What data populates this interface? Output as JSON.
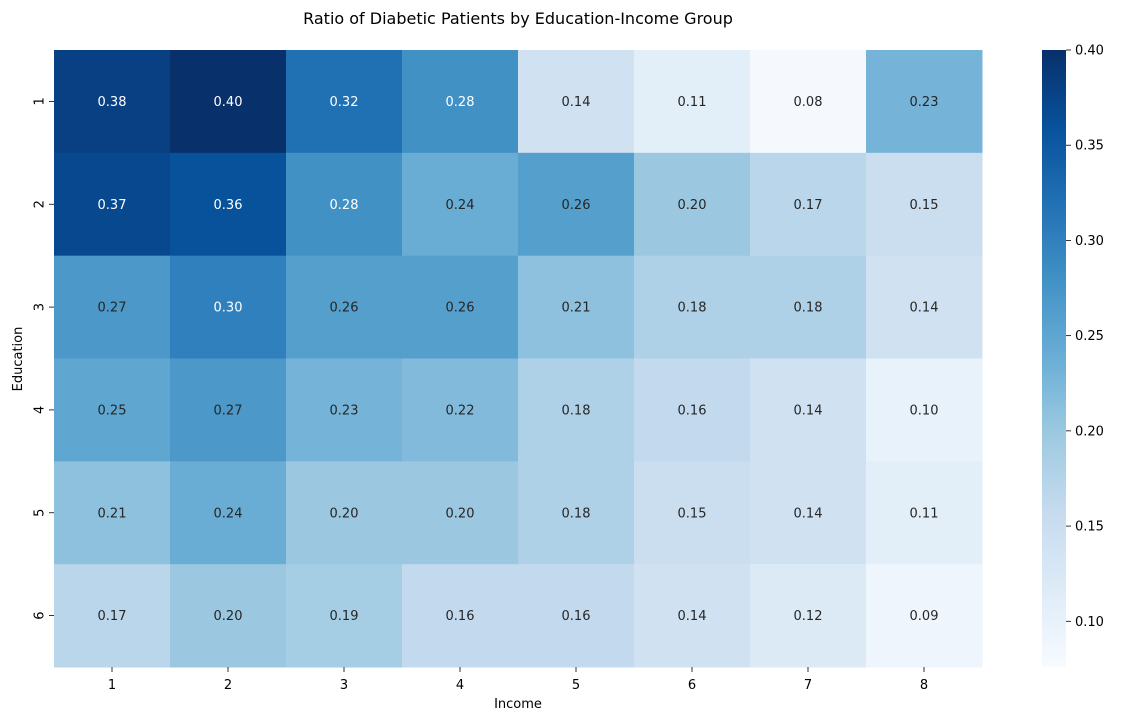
{
  "chart_data": {
    "type": "heatmap",
    "title": "Ratio of Diabetic Patients by Education-Income Group",
    "xlabel": "Income",
    "ylabel": "Education",
    "x_categories": [
      "1",
      "2",
      "3",
      "4",
      "5",
      "6",
      "7",
      "8"
    ],
    "y_categories": [
      "1",
      "2",
      "3",
      "4",
      "5",
      "6"
    ],
    "values": [
      [
        0.38,
        0.4,
        0.32,
        0.28,
        0.14,
        0.11,
        0.08,
        0.23
      ],
      [
        0.37,
        0.36,
        0.28,
        0.24,
        0.26,
        0.2,
        0.17,
        0.15
      ],
      [
        0.27,
        0.3,
        0.26,
        0.26,
        0.21,
        0.18,
        0.18,
        0.14
      ],
      [
        0.25,
        0.27,
        0.23,
        0.22,
        0.18,
        0.16,
        0.14,
        0.1
      ],
      [
        0.21,
        0.24,
        0.2,
        0.2,
        0.18,
        0.15,
        0.14,
        0.11
      ],
      [
        0.17,
        0.2,
        0.19,
        0.16,
        0.16,
        0.14,
        0.12,
        0.09
      ]
    ],
    "cell_labels": [
      [
        "0.38",
        "0.40",
        "0.32",
        "0.28",
        "0.14",
        "0.11",
        "0.08",
        "0.23"
      ],
      [
        "0.37",
        "0.36",
        "0.28",
        "0.24",
        "0.26",
        "0.20",
        "0.17",
        "0.15"
      ],
      [
        "0.27",
        "0.30",
        "0.26",
        "0.26",
        "0.21",
        "0.18",
        "0.18",
        "0.14"
      ],
      [
        "0.25",
        "0.27",
        "0.23",
        "0.22",
        "0.18",
        "0.16",
        "0.14",
        "0.10"
      ],
      [
        "0.21",
        "0.24",
        "0.20",
        "0.20",
        "0.18",
        "0.15",
        "0.14",
        "0.11"
      ],
      [
        "0.17",
        "0.20",
        "0.19",
        "0.16",
        "0.16",
        "0.14",
        "0.12",
        "0.09"
      ]
    ],
    "colorbar": {
      "min": 0.076,
      "max": 0.4,
      "ticks": [
        0.1,
        0.15,
        0.2,
        0.25,
        0.3,
        0.35,
        0.4
      ],
      "tick_labels": [
        "0.10",
        "0.15",
        "0.20",
        "0.25",
        "0.30",
        "0.35",
        "0.40"
      ]
    },
    "colormap": "Blues",
    "colormap_stops": [
      "#f7fbff",
      "#deebf7",
      "#c6dbef",
      "#9ecae1",
      "#6baed6",
      "#4292c6",
      "#2171b5",
      "#08519c",
      "#08306b"
    ],
    "annotation_colors": {
      "dark": "#262626",
      "light": "#ffffff"
    }
  }
}
